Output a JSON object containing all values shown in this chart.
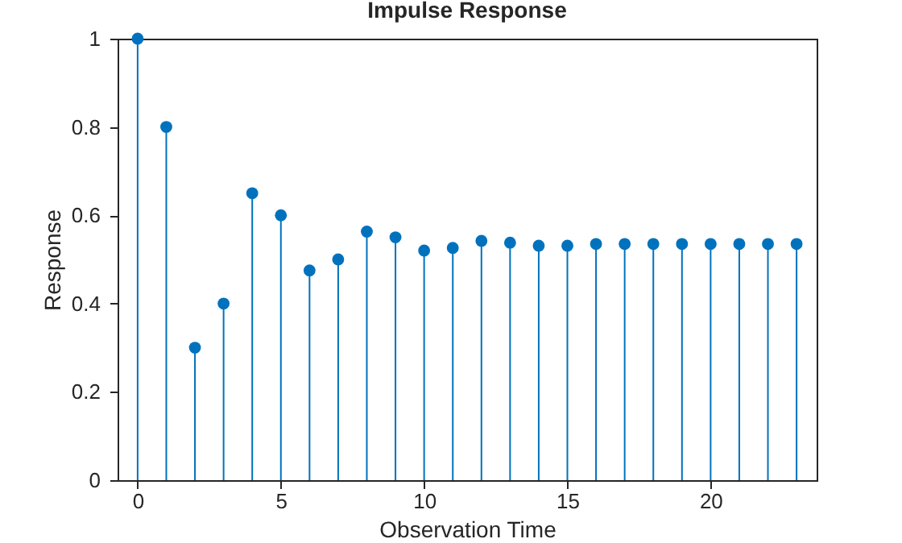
{
  "chart_data": {
    "type": "lollipop",
    "title": "Impulse Response",
    "xlabel": "Observation Time",
    "ylabel": "Response",
    "x": [
      0,
      1,
      2,
      3,
      4,
      5,
      6,
      7,
      8,
      9,
      10,
      11,
      12,
      13,
      14,
      15,
      16,
      17,
      18,
      19,
      20,
      21,
      22,
      23
    ],
    "series": [
      {
        "color": "#0072bd",
        "values": [
          1,
          0.8,
          0.3,
          0.4,
          0.65,
          0.6,
          0.475,
          0.5,
          0.563,
          0.55,
          0.52,
          0.526,
          0.542,
          0.538,
          0.531,
          0.531,
          0.535,
          0.535,
          0.535,
          0.535,
          0.535,
          0.535,
          0.535,
          0.535
        ]
      }
    ],
    "xlim": [
      -0.7,
      23.7
    ],
    "xticks": [
      0,
      5,
      10,
      15,
      20
    ],
    "ylim": [
      0,
      1
    ],
    "yticks": [
      0,
      0.2,
      0.4,
      0.6,
      0.8,
      1
    ],
    "grid": false,
    "marker": "circle"
  }
}
